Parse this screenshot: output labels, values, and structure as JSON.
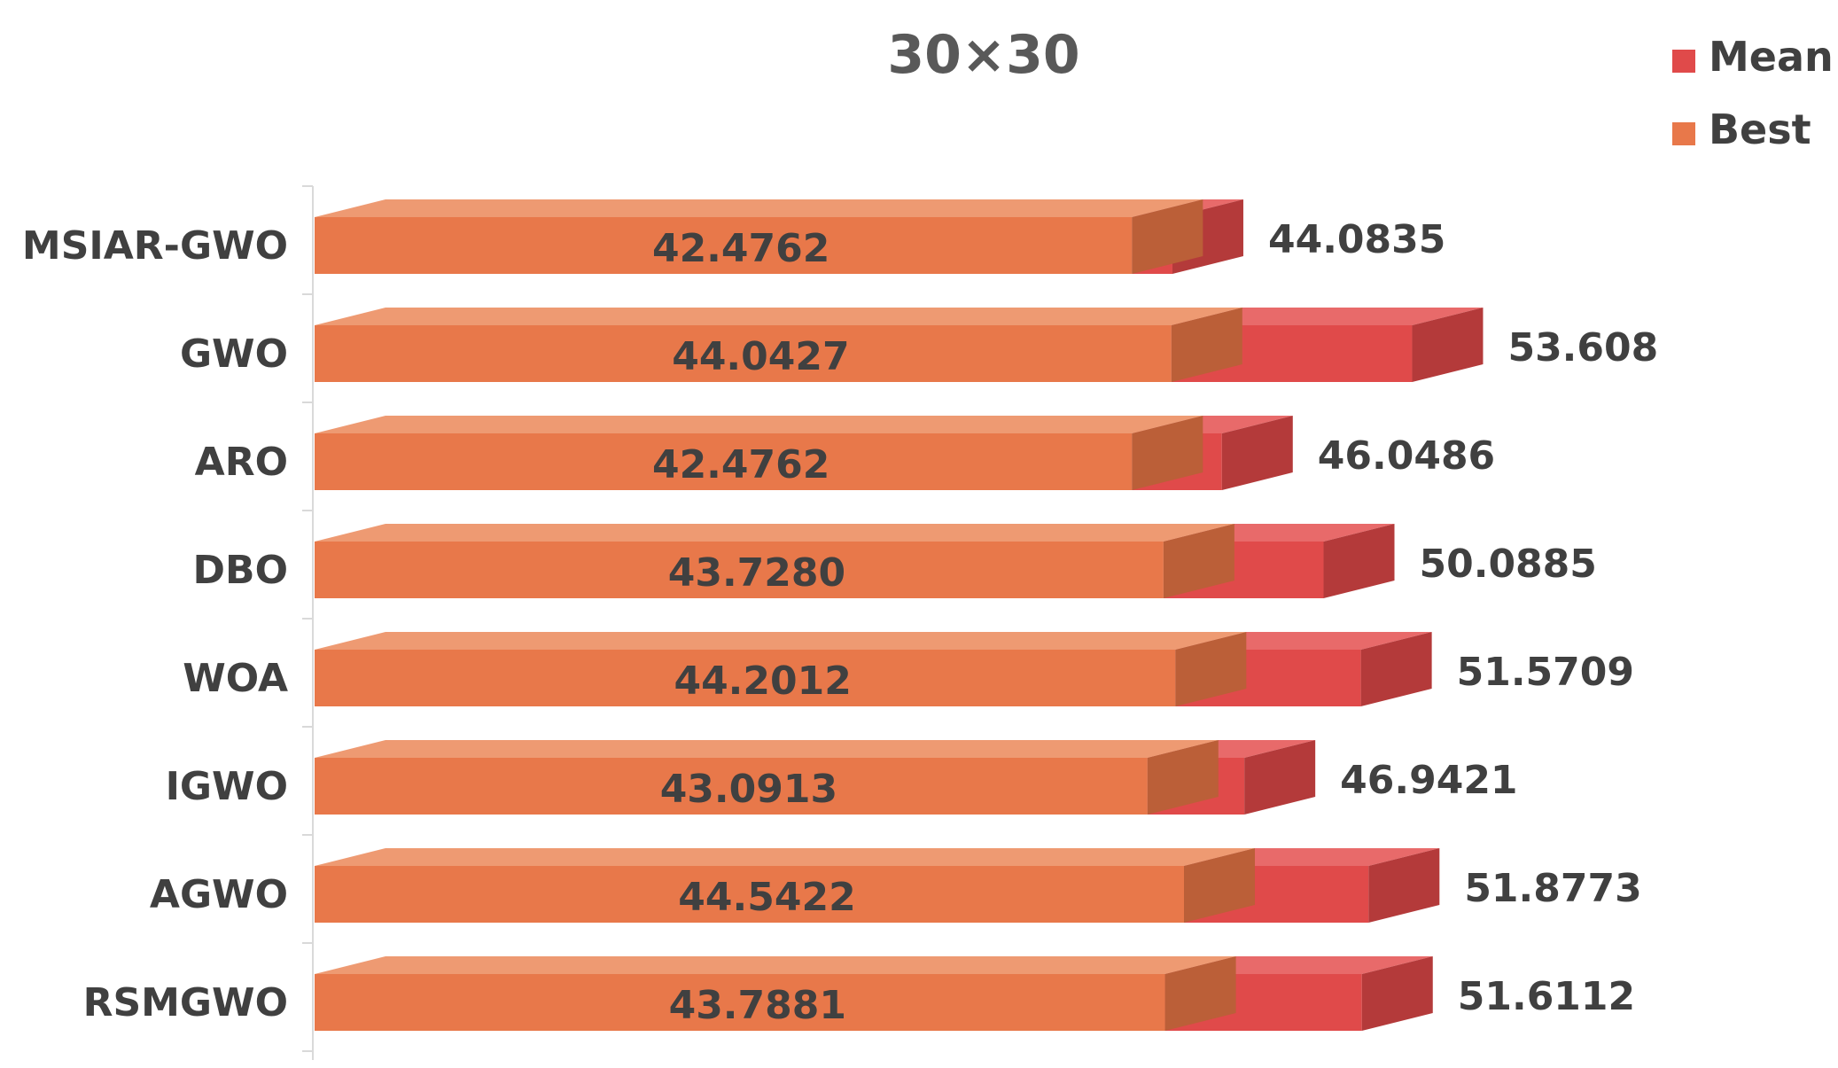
{
  "chart_data": {
    "type": "bar",
    "orientation": "horizontal",
    "stacked_overlap": true,
    "title": "30×30",
    "categories": [
      "MSIAR-GWO",
      "GWO",
      "ARO",
      "DBO",
      "WOA",
      "IGWO",
      "AGWO",
      "RSMGWO"
    ],
    "series": [
      {
        "name": "Mean",
        "color": "#e04a4a",
        "values": [
          44.0835,
          53.608,
          46.0486,
          50.0885,
          51.5709,
          46.9421,
          51.8773,
          51.6112
        ],
        "labels": [
          "44.0835",
          "53.608",
          "46.0486",
          "50.0885",
          "51.5709",
          "46.9421",
          "51.8773",
          "51.6112"
        ]
      },
      {
        "name": "Best",
        "color": "#e8784a",
        "values": [
          42.4762,
          44.0427,
          42.4762,
          43.728,
          44.2012,
          43.0913,
          44.5422,
          43.7881
        ],
        "labels": [
          "42.4762",
          "44.0427",
          "42.4762",
          "43.7280",
          "44.2012",
          "43.0913",
          "44.5422",
          "43.7881"
        ]
      }
    ],
    "legend_position": "top-right",
    "grid": false,
    "style": "3d"
  }
}
